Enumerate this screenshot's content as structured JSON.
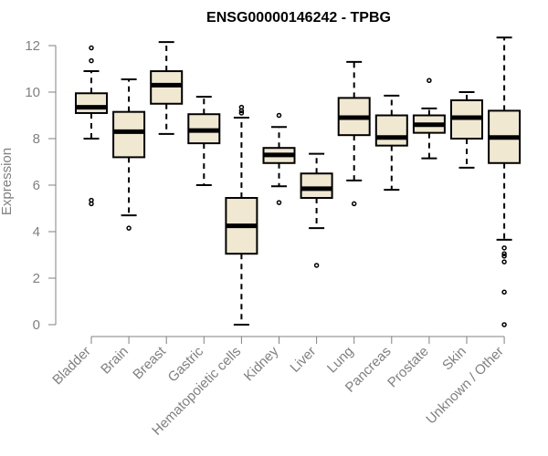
{
  "chart_data": {
    "type": "boxplot",
    "title": "ENSG00000146242 - TPBG",
    "xlabel": "",
    "ylabel": "Expression",
    "ylim": [
      0,
      12
    ],
    "yticks": [
      0,
      2,
      4,
      6,
      8,
      10,
      12
    ],
    "categories": [
      "Bladder",
      "Brain",
      "Breast",
      "Gastric",
      "Hematopoietic cells",
      "Kidney",
      "Liver",
      "Lung",
      "Pancreas",
      "Prostate",
      "Skin",
      "Unknown / Other"
    ],
    "boxes": [
      {
        "category": "Bladder",
        "q1": 9.1,
        "median": 9.35,
        "q3": 9.95,
        "whisker_low": 8.0,
        "whisker_high": 10.9,
        "outliers": [
          11.9,
          11.35,
          5.35,
          5.2
        ]
      },
      {
        "category": "Brain",
        "q1": 7.2,
        "median": 8.3,
        "q3": 9.15,
        "whisker_low": 4.7,
        "whisker_high": 10.55,
        "outliers": [
          4.15
        ]
      },
      {
        "category": "Breast",
        "q1": 9.5,
        "median": 10.3,
        "q3": 10.9,
        "whisker_low": 8.2,
        "whisker_high": 12.15,
        "outliers": []
      },
      {
        "category": "Gastric",
        "q1": 7.8,
        "median": 8.35,
        "q3": 9.05,
        "whisker_low": 6.0,
        "whisker_high": 9.8,
        "outliers": []
      },
      {
        "category": "Hematopoietic cells",
        "q1": 3.05,
        "median": 4.25,
        "q3": 5.45,
        "whisker_low": 0.0,
        "whisker_high": 8.9,
        "outliers": [
          9.35,
          9.2,
          9.1
        ]
      },
      {
        "category": "Kidney",
        "q1": 6.95,
        "median": 7.3,
        "q3": 7.6,
        "whisker_low": 5.95,
        "whisker_high": 8.5,
        "outliers": [
          9.0,
          5.25
        ]
      },
      {
        "category": "Liver",
        "q1": 5.45,
        "median": 5.85,
        "q3": 6.5,
        "whisker_low": 4.15,
        "whisker_high": 7.35,
        "outliers": [
          2.55
        ]
      },
      {
        "category": "Lung",
        "q1": 8.15,
        "median": 8.9,
        "q3": 9.75,
        "whisker_low": 6.2,
        "whisker_high": 11.3,
        "outliers": [
          5.2
        ]
      },
      {
        "category": "Pancreas",
        "q1": 7.7,
        "median": 8.05,
        "q3": 9.0,
        "whisker_low": 5.8,
        "whisker_high": 9.85,
        "outliers": []
      },
      {
        "category": "Prostate",
        "q1": 8.25,
        "median": 8.6,
        "q3": 9.0,
        "whisker_low": 7.15,
        "whisker_high": 9.3,
        "outliers": [
          10.5
        ]
      },
      {
        "category": "Skin",
        "q1": 8.0,
        "median": 8.9,
        "q3": 9.65,
        "whisker_low": 6.75,
        "whisker_high": 10.0,
        "outliers": []
      },
      {
        "category": "Unknown / Other",
        "q1": 6.95,
        "median": 8.05,
        "q3": 9.2,
        "whisker_low": 3.65,
        "whisker_high": 12.35,
        "outliers": [
          3.3,
          3.05,
          2.95,
          2.7,
          1.4,
          0.0
        ]
      }
    ],
    "grid": false,
    "colors": {
      "box_fill": "#f0e8d0",
      "box_stroke": "#000000",
      "median": "#000000",
      "axis": "#808080",
      "text": "#808080",
      "title": "#000000"
    }
  }
}
